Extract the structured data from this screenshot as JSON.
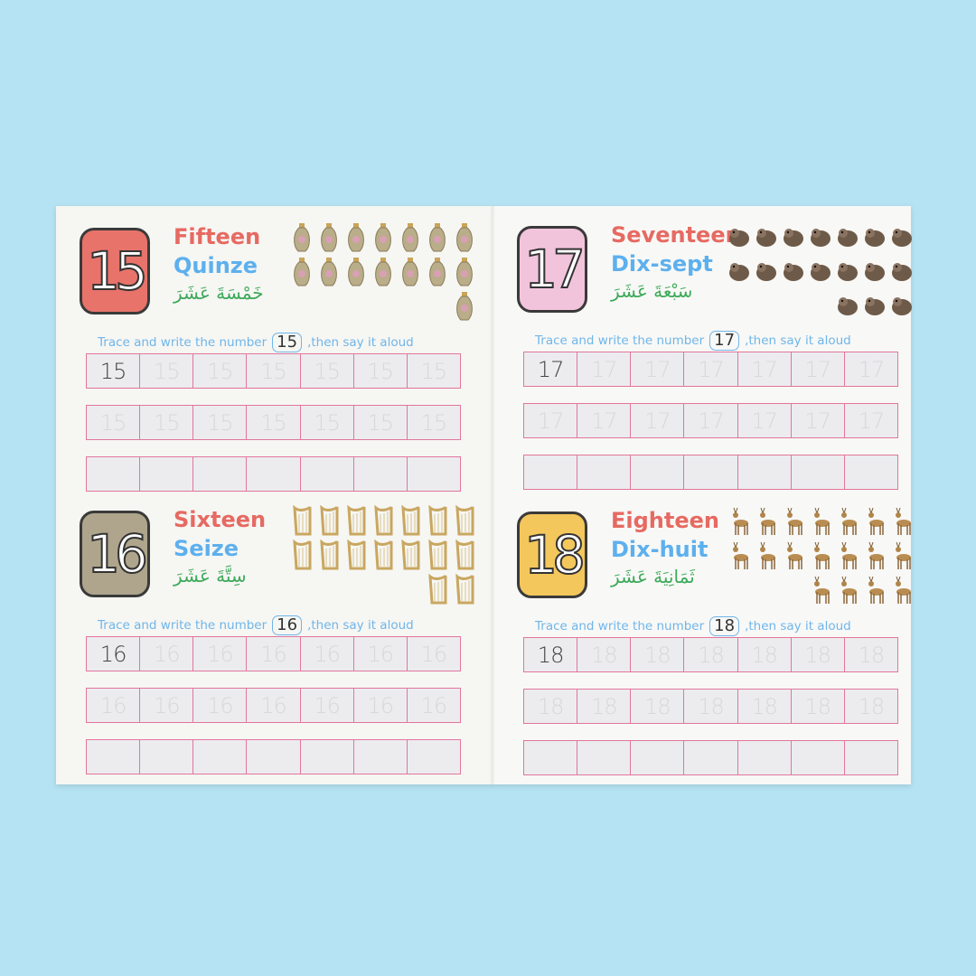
{
  "instruction": {
    "before": "Trace and write the number",
    "after": ",then say it aloud"
  },
  "sections": [
    {
      "number": "15",
      "english": "Fifteen",
      "french": "Quinze",
      "arabic": "خَمْسَةَ عَشَرَ",
      "badge_color": "#e8736a",
      "picture": "vase-icon",
      "picture_count": 15
    },
    {
      "number": "17",
      "english": "Seventeen",
      "french": "Dix-sept",
      "arabic": "سَبْعَةَ عَشَرَ",
      "badge_color": "#f2c4dc",
      "picture": "animal-icon",
      "picture_count": 17
    },
    {
      "number": "16",
      "english": "Sixteen",
      "french": "Seize",
      "arabic": "سِتَّةَ عَشَرَ",
      "badge_color": "#aea58c",
      "picture": "harp-icon",
      "picture_count": 16
    },
    {
      "number": "18",
      "english": "Eighteen",
      "french": "Dix-huit",
      "arabic": "ثَمَانِيَةَ عَشَرَ",
      "badge_color": "#f3c75c",
      "picture": "deer-icon",
      "picture_count": 18
    }
  ]
}
